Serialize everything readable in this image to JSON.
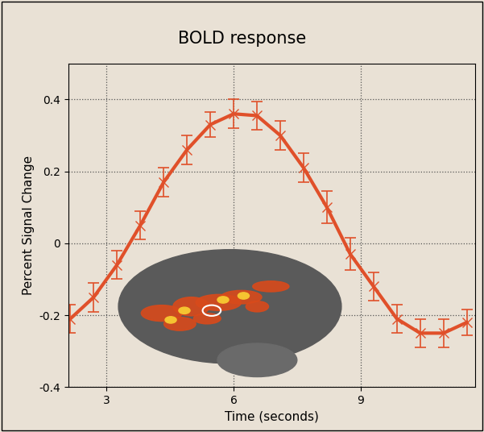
{
  "chart_data": {
    "type": "line",
    "title": "BOLD response",
    "x_label": "Time (seconds)",
    "y_label": "Percent Signal Change",
    "x": [
      2.15,
      2.7,
      3.25,
      3.8,
      4.35,
      4.9,
      5.45,
      6.0,
      6.55,
      7.1,
      7.65,
      8.2,
      8.75,
      9.3,
      9.85,
      10.4,
      10.95,
      11.5
    ],
    "values": [
      -0.21,
      -0.15,
      -0.06,
      0.05,
      0.17,
      0.26,
      0.33,
      0.36,
      0.355,
      0.3,
      0.21,
      0.1,
      -0.03,
      -0.12,
      -0.21,
      -0.25,
      -0.25,
      -0.22
    ],
    "errors": [
      0.04,
      0.04,
      0.04,
      0.04,
      0.04,
      0.04,
      0.035,
      0.04,
      0.04,
      0.04,
      0.04,
      0.045,
      0.045,
      0.04,
      0.04,
      0.04,
      0.04,
      0.035
    ],
    "color": "#e0502a",
    "marker": "x",
    "line_style": "solid",
    "xlim": [
      2.1,
      11.7
    ],
    "ylim": [
      -0.4,
      0.5
    ],
    "xticks": [
      3,
      6,
      9
    ],
    "yticks": [
      -0.4,
      -0.2,
      0,
      0.2,
      0.4
    ],
    "grid": true
  }
}
